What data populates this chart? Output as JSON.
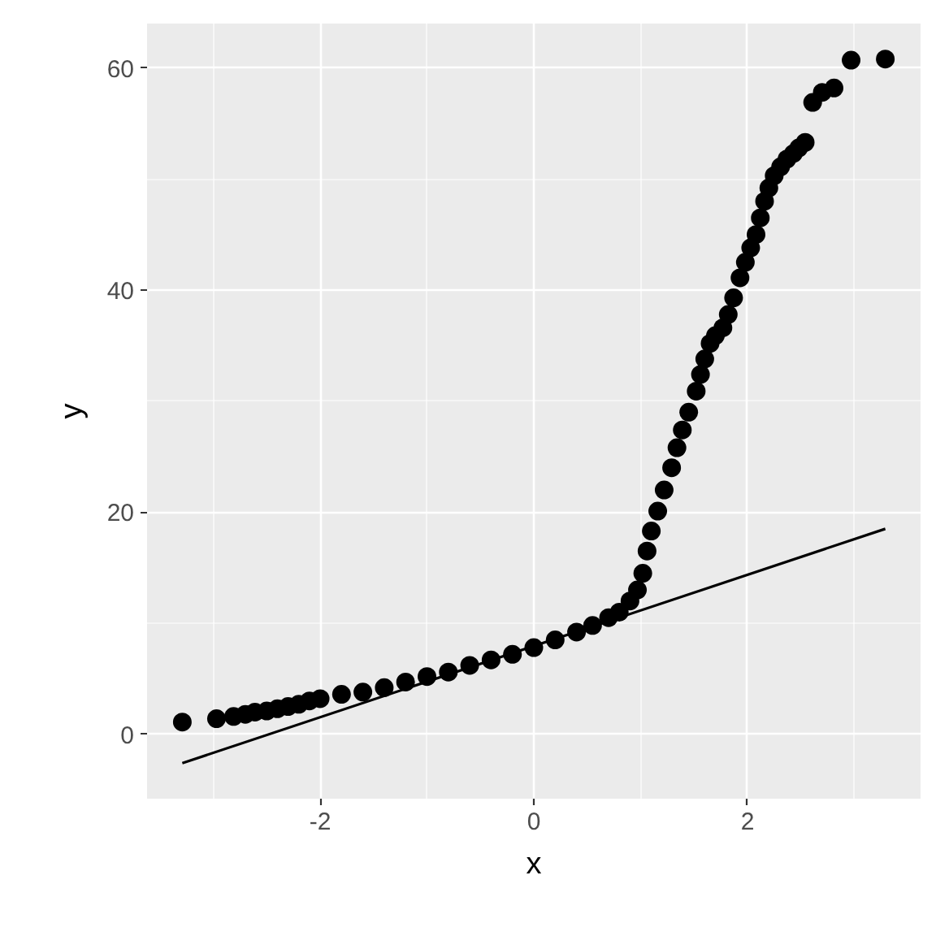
{
  "chart_data": {
    "type": "scatter",
    "xlabel": "x",
    "ylabel": "y",
    "xlim": [
      -3.62,
      3.62
    ],
    "ylim": [
      -5.8,
      64
    ],
    "xticks": [
      -2,
      0,
      2
    ],
    "yticks": [
      0,
      20,
      40,
      60
    ],
    "grid": true,
    "series": [
      {
        "color": "#000000",
        "marker": "circle",
        "x": [
          -3.29,
          -2.97,
          -2.81,
          -2.7,
          -2.61,
          -2.5,
          -2.4,
          -2.3,
          -2.2,
          -2.1,
          -2.0,
          -1.8,
          -1.6,
          -1.4,
          -1.2,
          -1.0,
          -0.8,
          -0.6,
          -0.4,
          -0.2,
          0.0,
          0.2,
          0.4,
          0.55,
          0.7,
          0.8,
          0.9,
          0.97,
          1.02,
          1.06,
          1.1,
          1.16,
          1.22,
          1.29,
          1.34,
          1.39,
          1.45,
          1.52,
          1.56,
          1.6,
          1.65,
          1.7,
          1.77,
          1.82,
          1.87,
          1.93,
          1.98,
          2.03,
          2.08,
          2.12,
          2.16,
          2.2,
          2.25,
          2.31,
          2.37,
          2.43,
          2.48,
          2.54,
          2.61,
          2.7,
          2.81,
          2.97,
          3.29
        ],
        "values": [
          1.1,
          1.4,
          1.6,
          1.8,
          2.0,
          2.1,
          2.3,
          2.5,
          2.7,
          3.0,
          3.2,
          3.6,
          3.8,
          4.2,
          4.7,
          5.2,
          5.6,
          6.2,
          6.7,
          7.2,
          7.8,
          8.5,
          9.2,
          9.8,
          10.5,
          11.0,
          12.0,
          13.0,
          14.5,
          16.5,
          18.3,
          20.1,
          22.0,
          24.0,
          25.8,
          27.4,
          29.0,
          30.9,
          32.4,
          33.8,
          35.2,
          35.9,
          36.6,
          37.8,
          39.3,
          41.1,
          42.5,
          43.8,
          45.0,
          46.5,
          48.0,
          49.2,
          50.3,
          51.1,
          51.8,
          52.3,
          52.8,
          53.3,
          56.9,
          57.8,
          58.2,
          60.7,
          60.8
        ]
      },
      {
        "type": "line",
        "color": "#000000",
        "line_style": "solid",
        "marker": "none",
        "x": [
          -3.29,
          3.29
        ],
        "values": [
          -2.6,
          18.5
        ]
      }
    ]
  }
}
